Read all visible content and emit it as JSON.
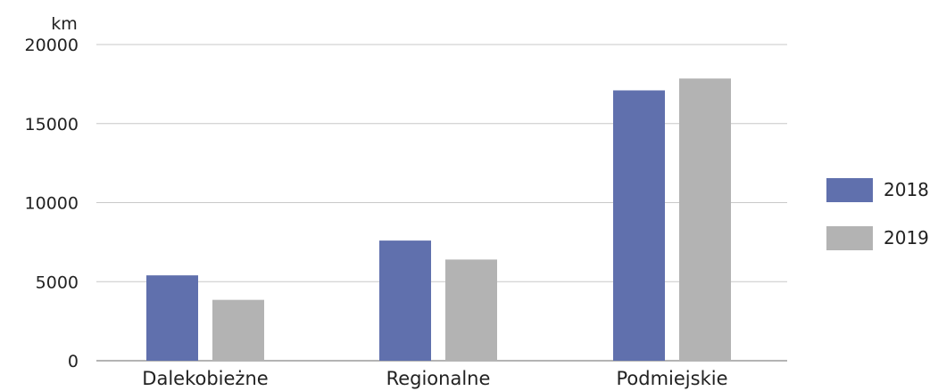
{
  "chart_data": {
    "type": "bar",
    "title": "",
    "xlabel": "",
    "ylabel": "km",
    "ylim": [
      0,
      20000
    ],
    "yticks": [
      0,
      5000,
      10000,
      15000,
      20000
    ],
    "grid": true,
    "legend_position": "right",
    "categories": [
      "Dalekobieżne",
      "Regionalne",
      "Podmiejskie"
    ],
    "series": [
      {
        "name": "2018",
        "color": "#6070ad",
        "values": [
          5400,
          7600,
          17100
        ]
      },
      {
        "name": "2019",
        "color": "#b3b3b3",
        "values": [
          3850,
          6400,
          17850
        ]
      }
    ]
  }
}
